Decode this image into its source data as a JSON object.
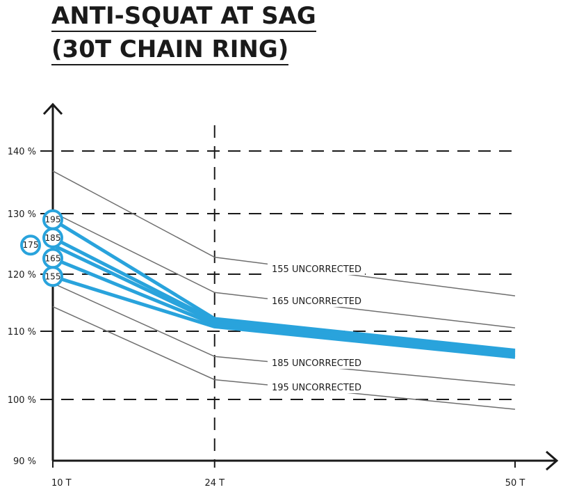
{
  "chart_data": {
    "type": "line",
    "title_lines": [
      "ANTI-SQUAT AT SAG",
      "(30T CHAIN RING)"
    ],
    "xlabel": "",
    "ylabel": "",
    "x": [
      10,
      24,
      50
    ],
    "x_tick_labels": [
      "10 T",
      "24 T",
      "50 T"
    ],
    "y_ticks": [
      90,
      100,
      110,
      120,
      130,
      140
    ],
    "y_tick_labels": [
      "90 %",
      "100 %",
      "110 %",
      "120 %",
      "130 %",
      "140 %"
    ],
    "ylim": [
      90,
      142
    ],
    "grid": "dashed at 100-140 % and 24 T",
    "series_corrected": [
      {
        "name": "195",
        "values": [
          129.0,
          112.2,
          107.2
        ]
      },
      {
        "name": "185",
        "values": [
          126.0,
          111.9,
          107.0
        ]
      },
      {
        "name": "175",
        "values": [
          124.8,
          111.6,
          106.8
        ]
      },
      {
        "name": "165",
        "values": [
          122.6,
          111.2,
          106.5
        ]
      },
      {
        "name": "155",
        "values": [
          119.6,
          110.8,
          106.2
        ]
      }
    ],
    "series_uncorrected": [
      {
        "name": "155 UNCORRECTED",
        "values": [
          136.8,
          122.8,
          116.2
        ]
      },
      {
        "name": "165 UNCORRECTED",
        "values": [
          130.2,
          116.8,
          110.6
        ]
      },
      {
        "name": "185 UNCORRECTED",
        "values": [
          118.4,
          106.3,
          102.1
        ]
      },
      {
        "name": "195 UNCORRECTED",
        "values": [
          114.3,
          102.9,
          98.4
        ]
      }
    ],
    "colors": {
      "corrected": "#29a3dc",
      "uncorrected": "#6e6e6e",
      "axis": "#1a1a1a"
    }
  }
}
